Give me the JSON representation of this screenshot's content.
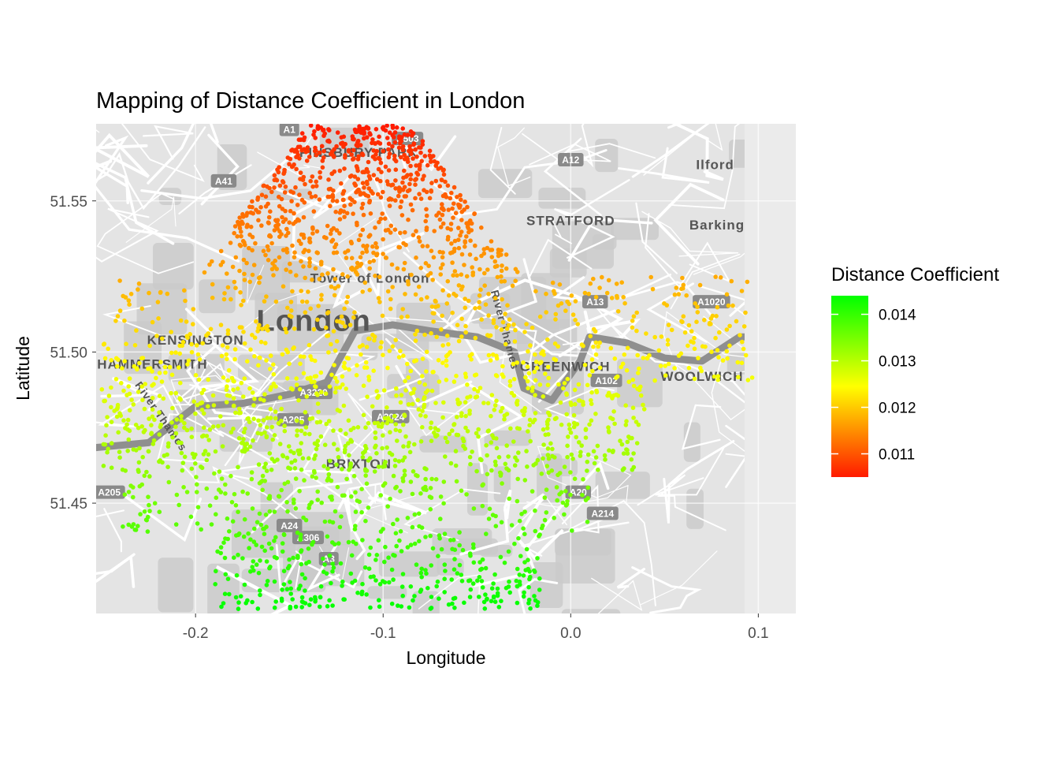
{
  "chart_data": {
    "type": "scatter",
    "title": "Mapping of Distance Coefficient in London",
    "xlabel": "Longitude",
    "ylabel": "Latitude",
    "xlim": [
      -0.253,
      0.12
    ],
    "ylim": [
      51.4135,
      51.5755
    ],
    "x_ticks": [
      -0.2,
      -0.1,
      0.0,
      0.1
    ],
    "x_tick_labels": [
      "-0.2",
      "-0.1",
      "0.0",
      "0.1"
    ],
    "y_ticks": [
      51.45,
      51.5,
      51.55
    ],
    "y_tick_labels": [
      "51.45",
      "51.50",
      "51.55"
    ],
    "grid": true,
    "basemap": "grey road map of London",
    "point_color": "continuous gradient by Distance Coefficient",
    "legend": {
      "title": "Distance Coefficient",
      "position": "right",
      "range": [
        0.0105,
        0.0144
      ],
      "ticks": [
        0.011,
        0.012,
        0.013,
        0.014
      ],
      "tick_labels": [
        "0.011",
        "0.012",
        "0.013",
        "0.014"
      ],
      "colors": [
        "#ff1a00",
        "#ffff00",
        "#00ff00"
      ]
    },
    "trend": {
      "description": "coefficient decreases with latitude (north = red, south = green)",
      "lat_at_min": 51.575,
      "lat_at_max": 51.415
    },
    "map_labels": [
      {
        "text": "London",
        "lon": -0.137,
        "lat": 51.507,
        "size": "large"
      },
      {
        "text": "STRATFORD",
        "lon": 0.0,
        "lat": 51.542
      },
      {
        "text": "GREENWICH",
        "lon": -0.003,
        "lat": 51.4937
      },
      {
        "text": "WOOLWICH",
        "lon": 0.07,
        "lat": 51.4905
      },
      {
        "text": "BRIXTON",
        "lon": -0.113,
        "lat": 51.4615
      },
      {
        "text": "Ilford",
        "lon": 0.077,
        "lat": 51.5605
      },
      {
        "text": "Barking",
        "lon": 0.078,
        "lat": 51.5405
      },
      {
        "text": "FINSBURY PARK",
        "lon": -0.113,
        "lat": 51.5645
      },
      {
        "text": "KENSINGTON",
        "lon": -0.2,
        "lat": 51.5025
      },
      {
        "text": "HAMMERSMITH",
        "lon": -0.223,
        "lat": 51.4945
      },
      {
        "text": "Tower of London",
        "lon": -0.107,
        "lat": 51.523
      },
      {
        "text": "River Thames",
        "lon": -0.22,
        "lat": 51.478
      },
      {
        "text": "River Thames",
        "lon": -0.037,
        "lat": 51.507
      }
    ],
    "road_shields": [
      "A1",
      "A503",
      "A12",
      "A41",
      "A13",
      "A1020",
      "A102",
      "A3220",
      "A205",
      "A2024",
      "A20",
      "A214",
      "A24",
      "A306",
      "A3",
      "A205"
    ]
  }
}
